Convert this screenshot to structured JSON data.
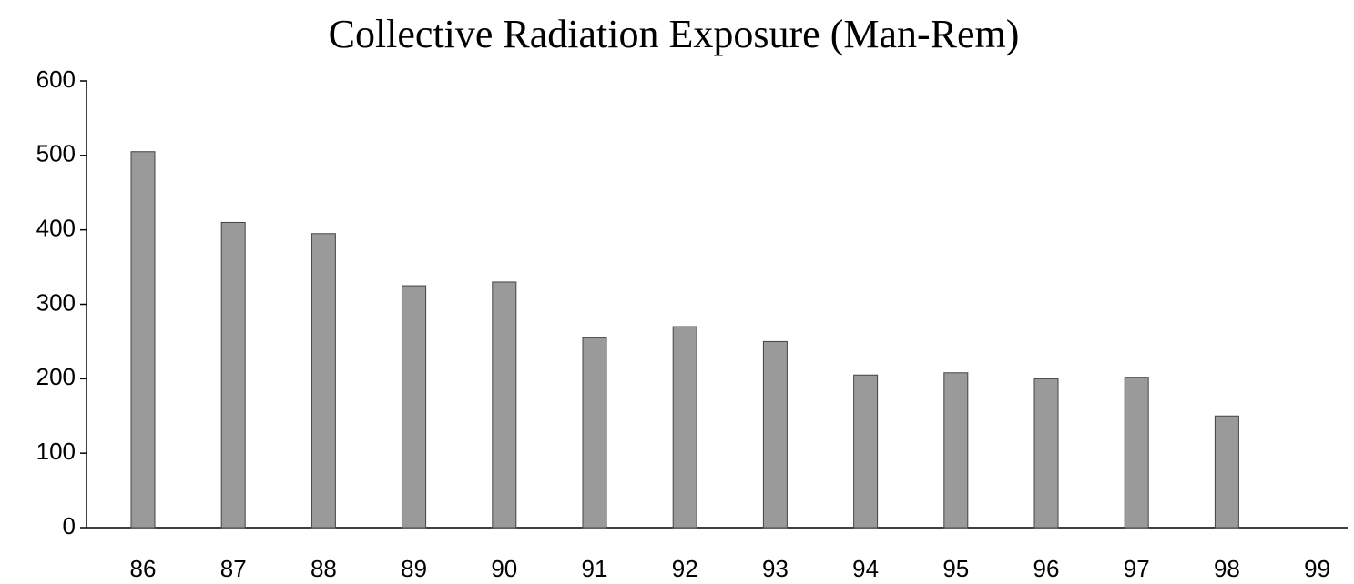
{
  "chart_data": {
    "type": "bar",
    "title": "Collective Radiation Exposure (Man-Rem)",
    "categories": [
      "86",
      "87",
      "88",
      "89",
      "90",
      "91",
      "92",
      "93",
      "94",
      "95",
      "96",
      "97",
      "98",
      "99"
    ],
    "values": [
      505,
      410,
      395,
      325,
      330,
      255,
      270,
      250,
      205,
      208,
      200,
      202,
      150,
      null
    ],
    "color": "#9a9a9a",
    "ylim": [
      0,
      600
    ],
    "yticks": [
      0,
      100,
      200,
      300,
      400,
      500,
      600
    ],
    "grid": false
  }
}
